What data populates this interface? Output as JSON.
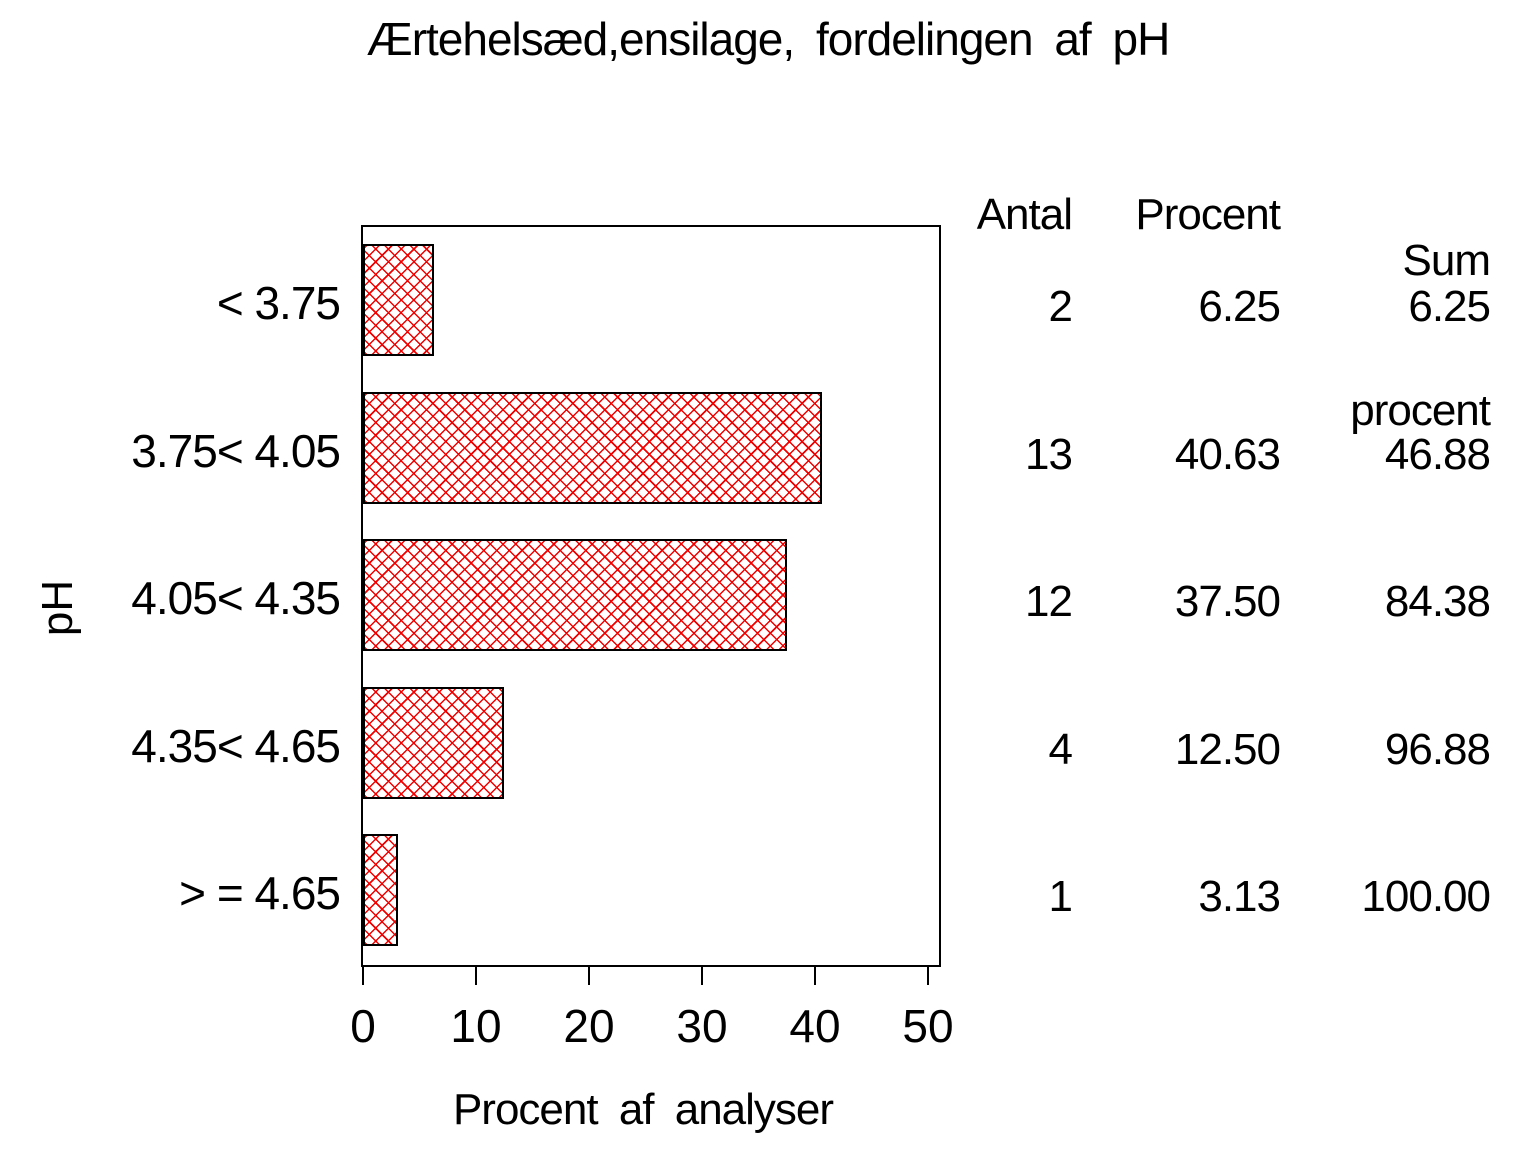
{
  "chart_data": {
    "type": "bar",
    "orientation": "horizontal",
    "title": "Ærtehelsæd,ensilage, fordelingen af pH",
    "xlabel": "Procent af analyser",
    "ylabel": "pH",
    "categories": [
      "< 3.75",
      "3.75< 4.05",
      "4.05< 4.35",
      "4.35< 4.65",
      "> = 4.65"
    ],
    "series": [
      {
        "name": "Antal",
        "values": [
          2,
          13,
          12,
          4,
          1
        ]
      },
      {
        "name": "Procent",
        "values": [
          6.25,
          40.63,
          37.5,
          12.5,
          3.13
        ]
      },
      {
        "name": "Sum procent",
        "values": [
          6.25,
          46.88,
          84.38,
          96.88,
          100.0
        ]
      }
    ],
    "bar_value_series": "Procent",
    "xlim": [
      0,
      50
    ],
    "xticks": [
      0,
      10,
      20,
      30,
      40,
      50
    ],
    "grid": false,
    "legend": false,
    "bar_fill_style": "red diagonal crosshatch on white with black outline"
  },
  "colors": {
    "bar_hatch": "#f20000",
    "axis": "#000000",
    "text": "#000000",
    "background": "#ffffff"
  },
  "table": {
    "headers": {
      "antal": "Antal",
      "procent": "Procent",
      "sum_line1": "Sum",
      "sum_line2": "procent"
    },
    "rows": [
      {
        "antal": "2",
        "procent": "6.25",
        "sum": "6.25"
      },
      {
        "antal": "13",
        "procent": "40.63",
        "sum": "46.88"
      },
      {
        "antal": "12",
        "procent": "37.50",
        "sum": "84.38"
      },
      {
        "antal": "4",
        "procent": "12.50",
        "sum": "96.88"
      },
      {
        "antal": "1",
        "procent": "3.13",
        "sum": "100.00"
      }
    ]
  }
}
